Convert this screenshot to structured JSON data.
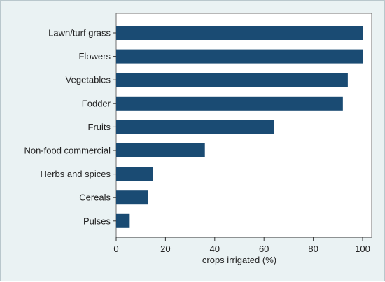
{
  "chart_data": {
    "type": "bar",
    "orientation": "horizontal",
    "categories": [
      "Lawn/turf grass",
      "Flowers",
      "Vegetables",
      "Fodder",
      "Fruits",
      "Non-food commercial",
      "Herbs and spices",
      "Cereals",
      "Pulses"
    ],
    "values": [
      100,
      100,
      94,
      92,
      64,
      36,
      15,
      13,
      5.5
    ],
    "xlabel": "crops irrigated (%)",
    "ylabel": "",
    "xlim": [
      0,
      100
    ],
    "xticks": [
      "0",
      "20",
      "40",
      "60",
      "80",
      "100"
    ],
    "grid": false,
    "colors": {
      "bar": "#1a4b73",
      "background": "#eaf2f3",
      "plot_background": "#ffffff"
    }
  }
}
